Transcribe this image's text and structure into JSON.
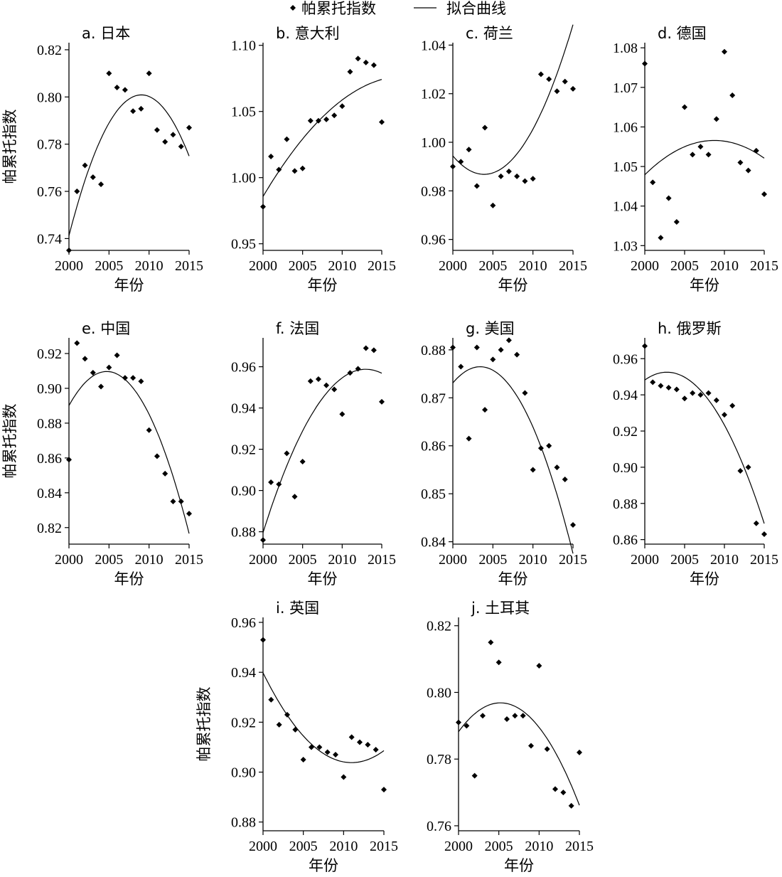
{
  "legend": {
    "points_label": "帕累托指数",
    "curve_label": "拟合曲线"
  },
  "chart_data": [
    {
      "type": "scatter",
      "title": "a. 日本",
      "xlabel": "年份",
      "ylabel": "帕累托指数",
      "xlim": [
        2000,
        2015
      ],
      "ylim": [
        0.735,
        0.823
      ],
      "xticks": [
        2000,
        2005,
        2010,
        2015
      ],
      "yticks": [
        0.74,
        0.76,
        0.78,
        0.8,
        0.82
      ],
      "ytick_labels": [
        "0.74",
        "0.76",
        "0.78",
        "0.80",
        "0.82"
      ],
      "x": [
        2000,
        2001,
        2002,
        2003,
        2004,
        2005,
        2006,
        2007,
        2008,
        2009,
        2010,
        2011,
        2012,
        2013,
        2014,
        2015
      ],
      "y": [
        0.735,
        0.76,
        0.771,
        0.766,
        0.763,
        0.81,
        0.804,
        0.803,
        0.794,
        0.795,
        0.81,
        0.786,
        0.781,
        0.784,
        0.779,
        0.787
      ],
      "fit": [
        0.7412,
        0.0132,
        -0.00073
      ]
    },
    {
      "type": "scatter",
      "title": "b. 意大利",
      "xlabel": "年份",
      "ylabel": "",
      "xlim": [
        2000,
        2015
      ],
      "ylim": [
        0.945,
        1.102
      ],
      "xticks": [
        2000,
        2005,
        2010,
        2015
      ],
      "yticks": [
        0.95,
        1.0,
        1.05,
        1.1
      ],
      "ytick_labels": [
        "0.95",
        "1.00",
        "1.05",
        "1.10"
      ],
      "x": [
        2000,
        2001,
        2002,
        2003,
        2004,
        2005,
        2006,
        2007,
        2008,
        2009,
        2010,
        2011,
        2012,
        2013,
        2014,
        2015
      ],
      "y": [
        0.978,
        1.016,
        1.006,
        1.029,
        1.005,
        1.007,
        1.043,
        1.043,
        1.044,
        1.047,
        1.054,
        1.08,
        1.09,
        1.087,
        1.085,
        1.042
      ],
      "fit": [
        0.9857,
        0.0101,
        -0.00028
      ]
    },
    {
      "type": "scatter",
      "title": "c. 荷兰",
      "xlabel": "年份",
      "ylabel": "",
      "xlim": [
        2000,
        2015
      ],
      "ylim": [
        0.9555,
        1.041
      ],
      "xticks": [
        2000,
        2005,
        2010,
        2015
      ],
      "yticks": [
        0.96,
        0.98,
        1.0,
        1.02,
        1.04
      ],
      "ytick_labels": [
        "0.96",
        "0.98",
        "1.00",
        "1.02",
        "1.04"
      ],
      "x": [
        2000,
        2001,
        2002,
        2003,
        2004,
        2005,
        2006,
        2007,
        2008,
        2009,
        2010,
        2011,
        2012,
        2013,
        2014,
        2015
      ],
      "y": [
        0.99,
        0.992,
        0.997,
        0.982,
        1.006,
        0.974,
        0.986,
        0.988,
        0.986,
        0.984,
        0.985,
        1.028,
        1.026,
        1.021,
        1.025,
        1.022
      ],
      "fit": [
        0.9944,
        -0.0039,
        0.0005
      ]
    },
    {
      "type": "scatter",
      "title": "d. 德国",
      "xlabel": "年份",
      "ylabel": "",
      "xlim": [
        2000,
        2015
      ],
      "ylim": [
        1.0288,
        1.0813
      ],
      "xticks": [
        2000,
        2005,
        2010,
        2015
      ],
      "yticks": [
        1.03,
        1.04,
        1.05,
        1.06,
        1.07,
        1.08
      ],
      "ytick_labels": [
        "1.03",
        "1.04",
        "1.05",
        "1.06",
        "1.07",
        "1.08"
      ],
      "x": [
        2000,
        2001,
        2002,
        2003,
        2004,
        2005,
        2006,
        2007,
        2008,
        2009,
        2010,
        2011,
        2012,
        2013,
        2014,
        2015
      ],
      "y": [
        1.076,
        1.046,
        1.032,
        1.042,
        1.036,
        1.065,
        1.053,
        1.055,
        1.053,
        1.062,
        1.079,
        1.068,
        1.051,
        1.049,
        1.054,
        1.043
      ],
      "fit": [
        1.0479,
        0.00199,
        -0.000114
      ]
    },
    {
      "type": "scatter",
      "title": "e. 中国",
      "xlabel": "年份",
      "ylabel": "帕累托指数",
      "xlim": [
        2000,
        2015
      ],
      "ylim": [
        0.8105,
        0.929
      ],
      "xticks": [
        2000,
        2005,
        2010,
        2015
      ],
      "yticks": [
        0.82,
        0.84,
        0.86,
        0.88,
        0.9,
        0.92
      ],
      "ytick_labels": [
        "0.82",
        "0.84",
        "0.86",
        "0.88",
        "0.90",
        "0.92"
      ],
      "x": [
        2000,
        2001,
        2002,
        2003,
        2004,
        2005,
        2006,
        2007,
        2008,
        2009,
        2010,
        2011,
        2012,
        2013,
        2014,
        2015
      ],
      "y": [
        0.859,
        0.926,
        0.917,
        0.909,
        0.901,
        0.912,
        0.919,
        0.906,
        0.906,
        0.904,
        0.876,
        0.861,
        0.851,
        0.835,
        0.835,
        0.828
      ],
      "fit": [
        0.8901,
        0.0083,
        -0.00088
      ]
    },
    {
      "type": "scatter",
      "title": "f. 法国",
      "xlabel": "年份",
      "ylabel": "",
      "xlim": [
        2000,
        2015
      ],
      "ylim": [
        0.874,
        0.974
      ],
      "xticks": [
        2000,
        2005,
        2010,
        2015
      ],
      "yticks": [
        0.88,
        0.9,
        0.92,
        0.94,
        0.96
      ],
      "ytick_labels": [
        "0.88",
        "0.90",
        "0.92",
        "0.94",
        "0.96"
      ],
      "x": [
        2000,
        2001,
        2002,
        2003,
        2004,
        2005,
        2006,
        2007,
        2008,
        2009,
        2010,
        2011,
        2012,
        2013,
        2014,
        2015
      ],
      "y": [
        0.876,
        0.904,
        0.903,
        0.918,
        0.897,
        0.914,
        0.953,
        0.954,
        0.951,
        0.949,
        0.937,
        0.957,
        0.959,
        0.969,
        0.968,
        0.943
      ],
      "fit": [
        0.8796,
        0.0122,
        -0.00047
      ]
    },
    {
      "type": "scatter",
      "title": "g. 美国",
      "xlabel": "年份",
      "ylabel": "",
      "xlim": [
        2000,
        2015
      ],
      "ylim": [
        0.8395,
        0.8825
      ],
      "xticks": [
        2000,
        2005,
        2010,
        2015
      ],
      "yticks": [
        0.84,
        0.85,
        0.86,
        0.87,
        0.88
      ],
      "ytick_labels": [
        "0.84",
        "0.85",
        "0.86",
        "0.87",
        "0.88"
      ],
      "x": [
        2000,
        2001,
        2002,
        2003,
        2004,
        2005,
        2006,
        2007,
        2008,
        2009,
        2010,
        2011,
        2012,
        2013,
        2014,
        2015
      ],
      "y": [
        0.8805,
        0.8765,
        0.8615,
        0.8805,
        0.8675,
        0.878,
        0.88,
        0.882,
        0.879,
        0.871,
        0.855,
        0.8595,
        0.86,
        0.8555,
        0.853,
        0.8435
      ],
      "fit": [
        0.8731,
        0.00198,
        -0.00029
      ]
    },
    {
      "type": "scatter",
      "title": "h. 俄罗斯",
      "xlabel": "年份",
      "ylabel": "",
      "xlim": [
        2000,
        2015
      ],
      "ylim": [
        0.8575,
        0.9715
      ],
      "xticks": [
        2000,
        2005,
        2010,
        2015
      ],
      "yticks": [
        0.86,
        0.88,
        0.9,
        0.92,
        0.94,
        0.96
      ],
      "ytick_labels": [
        "0.86",
        "0.88",
        "0.90",
        "0.92",
        "0.94",
        "0.96"
      ],
      "x": [
        2000,
        2001,
        2002,
        2003,
        2004,
        2005,
        2006,
        2007,
        2008,
        2009,
        2010,
        2011,
        2012,
        2013,
        2014,
        2015
      ],
      "y": [
        0.967,
        0.947,
        0.945,
        0.944,
        0.943,
        0.938,
        0.941,
        0.94,
        0.941,
        0.937,
        0.929,
        0.934,
        0.898,
        0.9,
        0.869,
        0.863
      ],
      "fit": [
        0.9482,
        0.00311,
        -0.00056
      ]
    },
    {
      "type": "scatter",
      "title": "i. 英国",
      "xlabel": "年份",
      "ylabel": "帕累托指数",
      "xlim": [
        2000,
        2015
      ],
      "ylim": [
        0.8765,
        0.962
      ],
      "xticks": [
        2000,
        2005,
        2010,
        2015
      ],
      "yticks": [
        0.88,
        0.9,
        0.92,
        0.94,
        0.96
      ],
      "ytick_labels": [
        "0.88",
        "0.90",
        "0.92",
        "0.94",
        "0.96"
      ],
      "x": [
        2000,
        2001,
        2002,
        2003,
        2004,
        2005,
        2006,
        2007,
        2008,
        2009,
        2010,
        2011,
        2012,
        2013,
        2014,
        2015
      ],
      "y": [
        0.953,
        0.929,
        0.919,
        0.923,
        0.917,
        0.905,
        0.91,
        0.91,
        0.908,
        0.907,
        0.898,
        0.914,
        0.912,
        0.911,
        0.909,
        0.893
      ],
      "fit": [
        0.9398,
        -0.00655,
        0.000298
      ]
    },
    {
      "type": "scatter",
      "title": "j. 土耳其",
      "xlabel": "年份",
      "ylabel": "",
      "xlim": [
        2000,
        2015
      ],
      "ylim": [
        0.7585,
        0.8225
      ],
      "xticks": [
        2000,
        2005,
        2010,
        2015
      ],
      "yticks": [
        0.76,
        0.78,
        0.8,
        0.82
      ],
      "ytick_labels": [
        "0.76",
        "0.78",
        "0.80",
        "0.82"
      ],
      "x": [
        2000,
        2001,
        2002,
        2003,
        2004,
        2005,
        2006,
        2007,
        2008,
        2009,
        2010,
        2011,
        2012,
        2013,
        2014,
        2015
      ],
      "y": [
        0.791,
        0.79,
        0.775,
        0.793,
        0.815,
        0.809,
        0.792,
        0.793,
        0.793,
        0.784,
        0.808,
        0.783,
        0.771,
        0.77,
        0.766,
        0.782
      ],
      "fit": [
        0.7882,
        0.00333,
        -0.00032
      ]
    }
  ]
}
